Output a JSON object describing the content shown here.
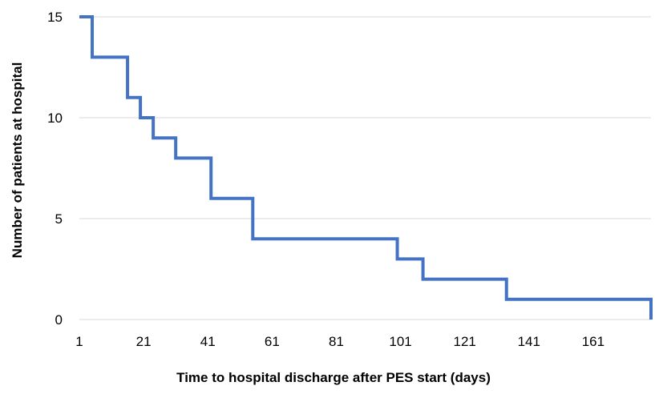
{
  "chart_data": {
    "type": "line",
    "title": "",
    "xlabel": "Time to hospital discharge after PES start (days)",
    "ylabel": "Number of patients at hospital",
    "xlim": [
      1,
      179
    ],
    "ylim": [
      0,
      15
    ],
    "x_ticks": [
      1,
      21,
      41,
      61,
      81,
      101,
      121,
      141,
      161
    ],
    "y_ticks": [
      0,
      5,
      10,
      15
    ],
    "grid": true,
    "legend": "none",
    "line_color": "#4472C4",
    "grid_color": "#d9d9d9",
    "step": true,
    "series": [
      {
        "x": [
          1,
          5,
          14,
          16,
          20,
          24,
          31,
          42,
          53,
          55,
          100,
          108,
          134,
          178,
          179
        ],
        "values": [
          15,
          13,
          13,
          11,
          10,
          9,
          8,
          6,
          6,
          4,
          3,
          2,
          1,
          1,
          0
        ]
      }
    ]
  }
}
